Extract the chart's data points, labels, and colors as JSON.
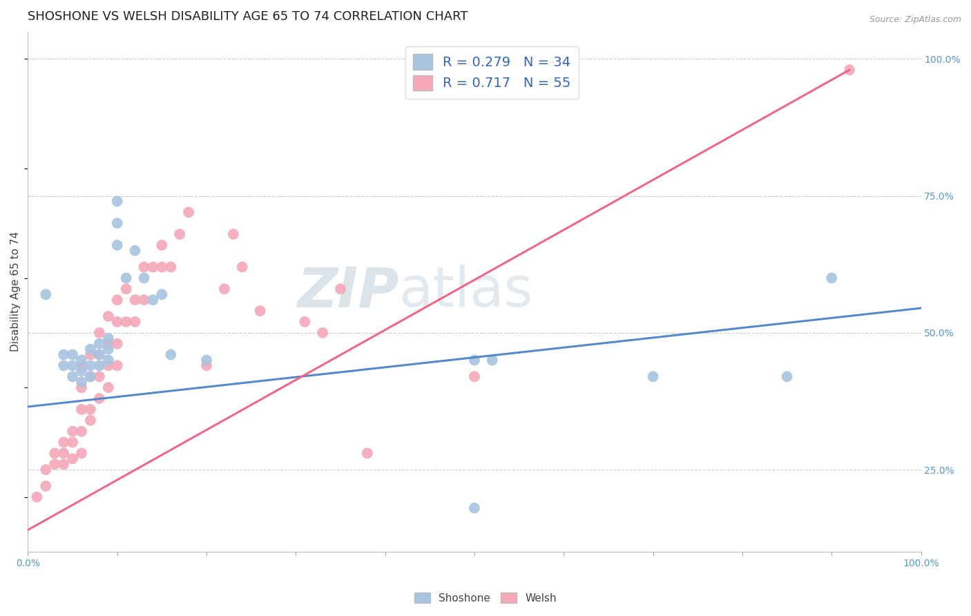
{
  "title": "SHOSHONE VS WELSH DISABILITY AGE 65 TO 74 CORRELATION CHART",
  "ylabel": "Disability Age 65 to 74",
  "source_text": "Source: ZipAtlas.com",
  "xlim": [
    0.0,
    1.0
  ],
  "ylim": [
    0.1,
    1.05
  ],
  "shoshone_R": "0.279",
  "shoshone_N": "34",
  "welsh_R": "0.717",
  "welsh_N": "55",
  "shoshone_color": "#a8c4e0",
  "welsh_color": "#f4a8b8",
  "shoshone_line_color": "#5588cc",
  "welsh_line_color": "#ee6688",
  "legend_text_color": "#3366bb",
  "watermark_zip": "ZIP",
  "watermark_atlas": "atlas",
  "shoshone_x": [
    0.02,
    0.04,
    0.04,
    0.05,
    0.05,
    0.05,
    0.06,
    0.06,
    0.06,
    0.07,
    0.07,
    0.07,
    0.08,
    0.08,
    0.08,
    0.09,
    0.09,
    0.09,
    0.1,
    0.1,
    0.1,
    0.11,
    0.12,
    0.13,
    0.14,
    0.15,
    0.16,
    0.2,
    0.5,
    0.52,
    0.7,
    0.85,
    0.9,
    0.5
  ],
  "shoshone_y": [
    0.57,
    0.44,
    0.46,
    0.42,
    0.44,
    0.46,
    0.41,
    0.43,
    0.45,
    0.42,
    0.44,
    0.47,
    0.44,
    0.46,
    0.48,
    0.45,
    0.47,
    0.49,
    0.66,
    0.7,
    0.74,
    0.6,
    0.65,
    0.6,
    0.56,
    0.57,
    0.46,
    0.45,
    0.45,
    0.45,
    0.42,
    0.42,
    0.6,
    0.18
  ],
  "welsh_x": [
    0.01,
    0.02,
    0.02,
    0.03,
    0.03,
    0.04,
    0.04,
    0.04,
    0.05,
    0.05,
    0.05,
    0.06,
    0.06,
    0.06,
    0.06,
    0.06,
    0.07,
    0.07,
    0.07,
    0.07,
    0.08,
    0.08,
    0.08,
    0.08,
    0.09,
    0.09,
    0.09,
    0.09,
    0.1,
    0.1,
    0.1,
    0.1,
    0.11,
    0.11,
    0.12,
    0.12,
    0.13,
    0.13,
    0.14,
    0.15,
    0.15,
    0.16,
    0.17,
    0.18,
    0.2,
    0.22,
    0.23,
    0.24,
    0.26,
    0.31,
    0.33,
    0.35,
    0.38,
    0.5,
    0.92
  ],
  "welsh_y": [
    0.2,
    0.22,
    0.25,
    0.26,
    0.28,
    0.26,
    0.28,
    0.3,
    0.27,
    0.3,
    0.32,
    0.28,
    0.32,
    0.36,
    0.4,
    0.44,
    0.34,
    0.36,
    0.42,
    0.46,
    0.38,
    0.42,
    0.46,
    0.5,
    0.4,
    0.44,
    0.48,
    0.53,
    0.44,
    0.48,
    0.52,
    0.56,
    0.52,
    0.58,
    0.52,
    0.56,
    0.56,
    0.62,
    0.62,
    0.62,
    0.66,
    0.62,
    0.68,
    0.72,
    0.44,
    0.58,
    0.68,
    0.62,
    0.54,
    0.52,
    0.5,
    0.58,
    0.28,
    0.42,
    0.98
  ],
  "shoshone_trend_x": [
    0.0,
    1.0
  ],
  "shoshone_trend_y": [
    0.365,
    0.545
  ],
  "welsh_trend_x": [
    0.0,
    0.92
  ],
  "welsh_trend_y": [
    0.14,
    0.98
  ],
  "background_color": "#ffffff",
  "grid_color": "#cccccc",
  "title_fontsize": 13,
  "axis_label_fontsize": 11,
  "tick_fontsize": 10,
  "legend_fontsize": 14
}
